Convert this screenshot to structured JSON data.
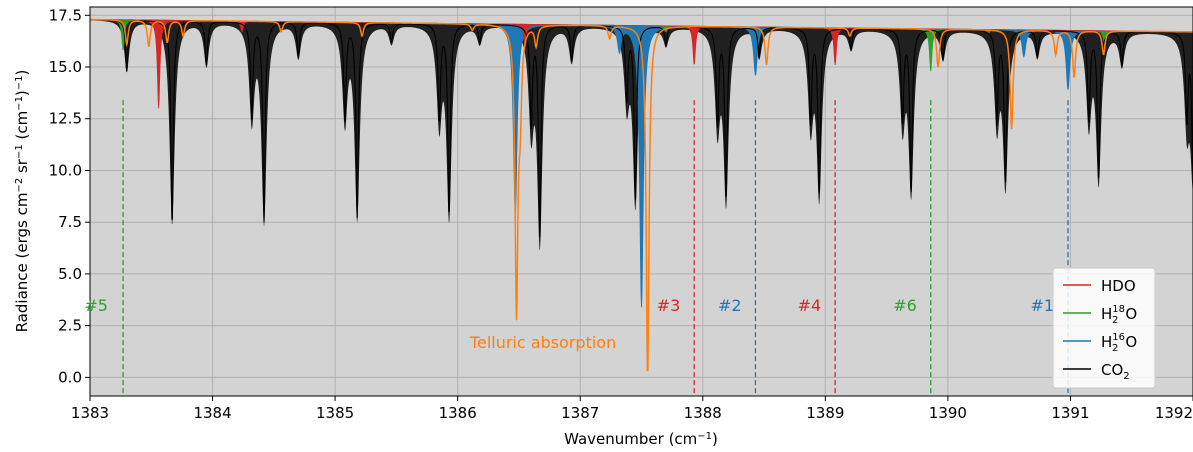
{
  "chart_data": {
    "type": "line",
    "xlabel": "Wavenumber (cm",
    "xlabel_sup": "−1",
    "xlabel_end": ")",
    "ylabel_parts": [
      "Radiance (ergs cm",
      "−2",
      " sr",
      "−1",
      " (cm",
      "−1",
      ")",
      "−1",
      ")"
    ],
    "xlim": [
      1383,
      1392
    ],
    "ylim": [
      -0.9,
      17.9
    ],
    "x_ticks": [
      1383,
      1384,
      1385,
      1386,
      1387,
      1388,
      1389,
      1390,
      1391,
      1392
    ],
    "y_ticks": [
      0.0,
      2.5,
      5.0,
      7.5,
      10.0,
      12.5,
      15.0,
      17.5
    ],
    "y_tick_labels": [
      "0.0",
      "2.5",
      "5.0",
      "7.5",
      "10.0",
      "12.5",
      "15.0",
      "17.5"
    ],
    "grid": true,
    "legend_position": "bottom-right",
    "background": "#d3d3d3",
    "baseline": {
      "x": [
        1383,
        1392
      ],
      "y": [
        17.3,
        16.7
      ]
    },
    "series": [
      {
        "name": "CO",
        "name_sub": "2",
        "color": "#000000",
        "lines": [
          {
            "x": 1383.3,
            "y": 14.8
          },
          {
            "x": 1383.67,
            "y": 7.4
          },
          {
            "x": 1383.95,
            "y": 15.1
          },
          {
            "x": 1384.32,
            "y": 12.6
          },
          {
            "x": 1384.42,
            "y": 7.6
          },
          {
            "x": 1384.7,
            "y": 15.5
          },
          {
            "x": 1385.08,
            "y": 12.5
          },
          {
            "x": 1385.18,
            "y": 7.8
          },
          {
            "x": 1385.46,
            "y": 16.2
          },
          {
            "x": 1385.85,
            "y": 12.5
          },
          {
            "x": 1385.93,
            "y": 7.9
          },
          {
            "x": 1386.18,
            "y": 16.2
          },
          {
            "x": 1386.6,
            "y": 12.3
          },
          {
            "x": 1386.67,
            "y": 6.7
          },
          {
            "x": 1386.93,
            "y": 15.3
          },
          {
            "x": 1387.38,
            "y": 13.5
          },
          {
            "x": 1387.45,
            "y": 8.5
          },
          {
            "x": 1387.7,
            "y": 16.1
          },
          {
            "x": 1388.12,
            "y": 12.3
          },
          {
            "x": 1388.19,
            "y": 8.7
          },
          {
            "x": 1388.46,
            "y": 15.5
          },
          {
            "x": 1388.88,
            "y": 12.4
          },
          {
            "x": 1388.95,
            "y": 8.9
          },
          {
            "x": 1389.21,
            "y": 15.9
          },
          {
            "x": 1389.63,
            "y": 12.4
          },
          {
            "x": 1389.7,
            "y": 9.1
          },
          {
            "x": 1389.96,
            "y": 15.4
          },
          {
            "x": 1390.4,
            "y": 12.4
          },
          {
            "x": 1390.47,
            "y": 9.4
          },
          {
            "x": 1390.73,
            "y": 15.5
          },
          {
            "x": 1391.15,
            "y": 12.4
          },
          {
            "x": 1391.23,
            "y": 9.6
          },
          {
            "x": 1391.42,
            "y": 15.1
          },
          {
            "x": 1391.95,
            "y": 12.5
          },
          {
            "x": 1392.0,
            "y": 9.9
          }
        ]
      },
      {
        "name": "H",
        "name_sub": "2",
        "name_sup": "16",
        "name_end": "O",
        "color": "#1f77b4",
        "lines": [
          {
            "x": 1386.47,
            "y": 7.8
          },
          {
            "x": 1387.32,
            "y": 15.8
          },
          {
            "x": 1387.5,
            "y": 3.4
          },
          {
            "x": 1388.43,
            "y": 14.6
          },
          {
            "x": 1390.62,
            "y": 15.5
          },
          {
            "x": 1390.98,
            "y": 13.9
          }
        ]
      },
      {
        "name": "H",
        "name_sub": "2",
        "name_sup": "18",
        "name_end": "O",
        "color": "#2ca02c",
        "lines": [
          {
            "x": 1383.27,
            "y": 15.8
          },
          {
            "x": 1387.7,
            "y": 16.7
          },
          {
            "x": 1389.86,
            "y": 14.8
          },
          {
            "x": 1390.33,
            "y": 16.6
          },
          {
            "x": 1391.28,
            "y": 16.0
          }
        ]
      },
      {
        "name": "HDO",
        "color": "#d62728",
        "lines": [
          {
            "x": 1383.56,
            "y": 13.0
          },
          {
            "x": 1384.24,
            "y": 16.7
          },
          {
            "x": 1386.55,
            "y": 16.0
          },
          {
            "x": 1387.93,
            "y": 15.1
          },
          {
            "x": 1389.08,
            "y": 15.1
          }
        ]
      }
    ],
    "telluric_lines": [
      {
        "x": 1383.3,
        "y": 16.1
      },
      {
        "x": 1383.48,
        "y": 16.0
      },
      {
        "x": 1383.63,
        "y": 16.2
      },
      {
        "x": 1383.76,
        "y": 16.5
      },
      {
        "x": 1384.56,
        "y": 16.7
      },
      {
        "x": 1385.22,
        "y": 16.5
      },
      {
        "x": 1386.12,
        "y": 16.8
      },
      {
        "x": 1386.48,
        "y": 3.4
      },
      {
        "x": 1386.51,
        "y": 13.5
      },
      {
        "x": 1386.64,
        "y": 16.1
      },
      {
        "x": 1387.24,
        "y": 16.4
      },
      {
        "x": 1387.55,
        "y": 0.0
      },
      {
        "x": 1388.52,
        "y": 15.1
      },
      {
        "x": 1389.2,
        "y": 16.5
      },
      {
        "x": 1389.92,
        "y": 15.0
      },
      {
        "x": 1390.52,
        "y": 12.0
      },
      {
        "x": 1390.88,
        "y": 15.6
      },
      {
        "x": 1391.03,
        "y": 14.5
      },
      {
        "x": 1391.27,
        "y": 15.6
      }
    ],
    "telluric_color": "#ff7f0e",
    "markers": [
      {
        "label": "#5",
        "x": 1383.27,
        "color": "#2ca02c",
        "label_x": 1383.05
      },
      {
        "label": "#3",
        "x": 1387.93,
        "color": "#d62728",
        "label_x": 1387.72
      },
      {
        "label": "#2",
        "x": 1388.43,
        "color": "#1f77b4",
        "label_x": 1388.22
      },
      {
        "label": "#4",
        "x": 1389.08,
        "color": "#d62728",
        "label_x": 1388.87
      },
      {
        "label": "#6",
        "x": 1389.86,
        "color": "#2ca02c",
        "label_x": 1389.65
      },
      {
        "label": "#1",
        "x": 1390.98,
        "color": "#1f77b4",
        "label_x": 1390.77
      }
    ],
    "marker_top": 13.4,
    "marker_label_y": 3.5,
    "annotation": {
      "text": "Telluric absorption",
      "x": 1386.1,
      "y": 1.7,
      "color": "#ff7f0e"
    }
  }
}
